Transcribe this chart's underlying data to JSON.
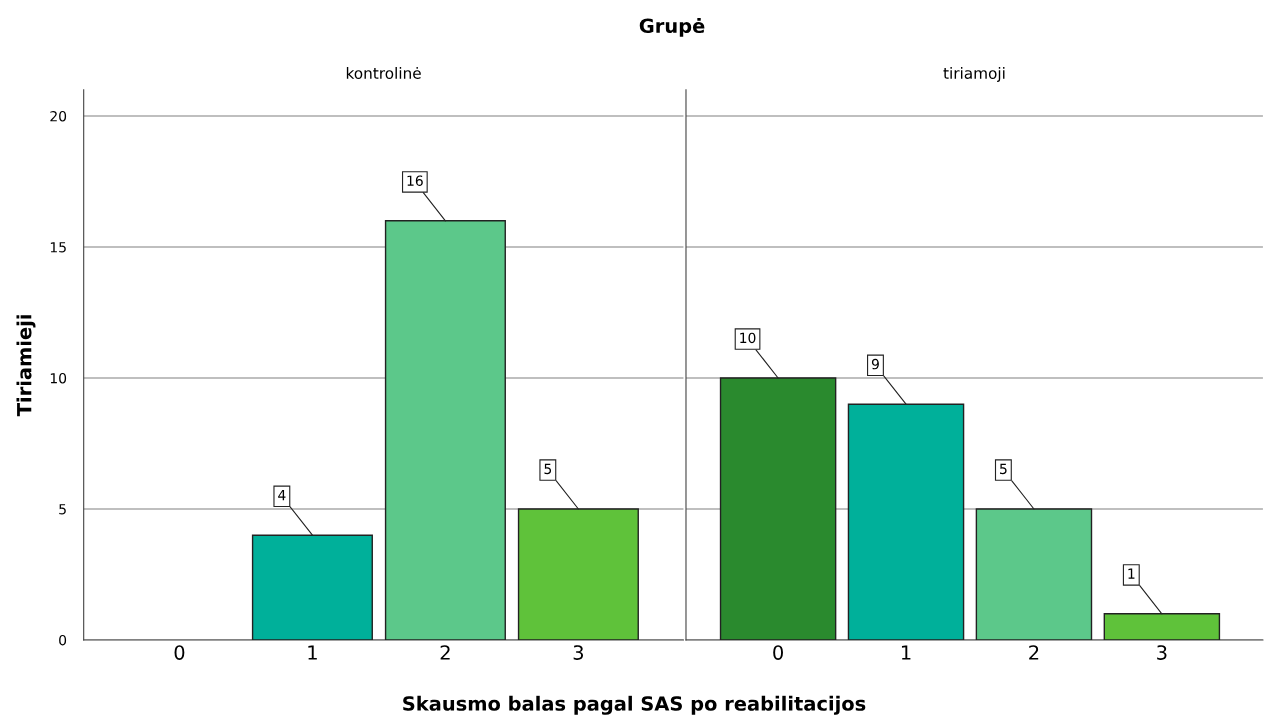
{
  "chart_data": [
    {
      "type": "bar",
      "title": "kontrolinė",
      "ylabel": "Tiriamieji",
      "xlabel": "Skausmo balas pagal SAS po reabilitacijos",
      "annotations": [
        "Grupė"
      ],
      "categories": [
        "0",
        "1",
        "2",
        "3"
      ],
      "values": [
        0,
        4,
        16,
        5
      ],
      "colors": [
        "#2a8a2e",
        "#00b09a",
        "#5cc88a",
        "#5fc23a"
      ],
      "value_labels": [
        null,
        "4",
        "16",
        "5"
      ],
      "ylim": [
        0,
        21
      ],
      "yticks": [
        0,
        5,
        10,
        15,
        20
      ],
      "grid": "y"
    },
    {
      "type": "bar",
      "title": "tiriamoji",
      "categories": [
        "0",
        "1",
        "2",
        "3"
      ],
      "values": [
        10,
        9,
        5,
        1
      ],
      "colors": [
        "#2a8a2e",
        "#00b09a",
        "#5cc88a",
        "#5fc23a"
      ],
      "data_labels": true,
      "ylim": [
        0,
        21
      ],
      "yticks": [
        0,
        5,
        10,
        15,
        20
      ],
      "grid": "y",
      "tick_labels": "x"
    }
  ]
}
